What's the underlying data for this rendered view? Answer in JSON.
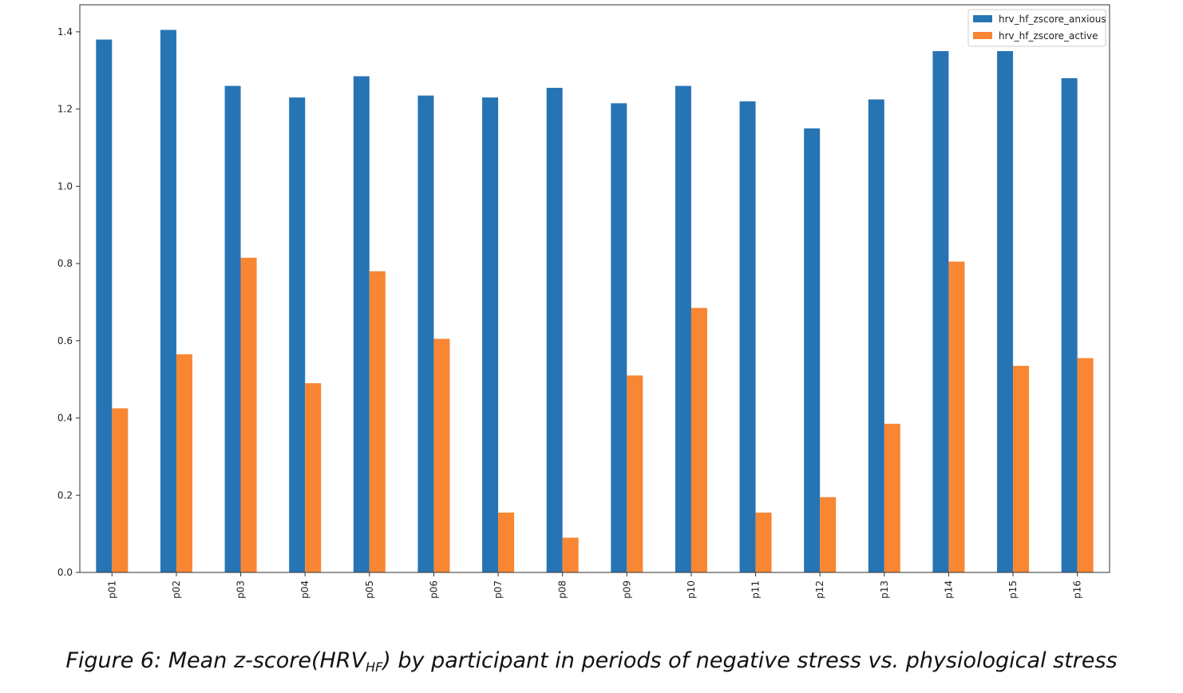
{
  "caption": {
    "prefix": "Figure 6: Mean z-score(HRV",
    "subscript": "HF",
    "suffix": ") by participant in periods of negative stress vs. physiological stress"
  },
  "chart_data": {
    "type": "bar",
    "categories": [
      "p01",
      "p02",
      "p03",
      "p04",
      "p05",
      "p06",
      "p07",
      "p08",
      "p09",
      "p10",
      "p11",
      "p12",
      "p13",
      "p14",
      "p15",
      "p16"
    ],
    "series": [
      {
        "name": "hrv_hf_zscore_anxious",
        "color": "#2774b4",
        "values": [
          1.38,
          1.405,
          1.26,
          1.23,
          1.285,
          1.235,
          1.23,
          1.255,
          1.215,
          1.26,
          1.22,
          1.15,
          1.225,
          1.35,
          1.35,
          1.28
        ]
      },
      {
        "name": "hrv_hf_zscore_active",
        "color": "#f88632",
        "values": [
          0.425,
          0.565,
          0.815,
          0.49,
          0.78,
          0.605,
          0.155,
          0.09,
          0.51,
          0.685,
          0.155,
          0.195,
          0.385,
          0.805,
          0.535,
          0.555
        ]
      }
    ],
    "yticks": [
      "0.0",
      "0.2",
      "0.4",
      "0.6",
      "0.8",
      "1.0",
      "1.2",
      "1.4"
    ],
    "ylim": [
      0,
      1.47
    ],
    "grid": false,
    "legend": "top-right",
    "title": "",
    "xlabel": "",
    "ylabel": ""
  }
}
